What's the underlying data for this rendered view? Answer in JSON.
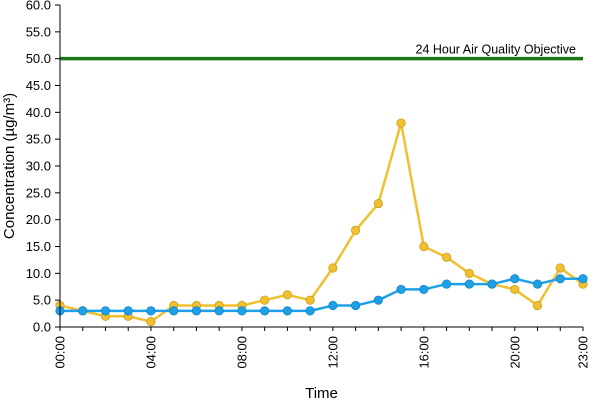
{
  "chart_data": {
    "type": "line",
    "xlabel": "Time",
    "ylabel": "Concentration (µg/m³)",
    "ylim": [
      0,
      60
    ],
    "yticks": [
      "0.0",
      "5.0",
      "10.0",
      "15.0",
      "20.0",
      "25.0",
      "30.0",
      "35.0",
      "40.0",
      "45.0",
      "50.0",
      "55.0",
      "60.0"
    ],
    "x": [
      "00:00",
      "01:00",
      "02:00",
      "03:00",
      "04:00",
      "05:00",
      "06:00",
      "07:00",
      "08:00",
      "09:00",
      "10:00",
      "11:00",
      "12:00",
      "13:00",
      "14:00",
      "15:00",
      "16:00",
      "17:00",
      "18:00",
      "19:00",
      "20:00",
      "21:00",
      "22:00",
      "23:00"
    ],
    "xtick_labels": [
      "00:00",
      "04:00",
      "08:00",
      "12:00",
      "16:00",
      "20:00",
      "23:00"
    ],
    "grid": false,
    "series": [
      {
        "color": "#f0c030",
        "values": [
          4,
          3,
          2,
          2,
          1,
          4,
          4,
          4,
          4,
          5,
          6,
          5,
          11,
          18,
          23,
          38,
          15,
          13,
          10,
          8,
          7,
          4,
          11,
          8
        ]
      },
      {
        "color": "#1ea0e8",
        "values": [
          3,
          3,
          3,
          3,
          3,
          3,
          3,
          3,
          3,
          3,
          3,
          3,
          4,
          4,
          5,
          7,
          7,
          8,
          8,
          8,
          9,
          8,
          9,
          9
        ]
      }
    ],
    "reference_line": {
      "value": 50,
      "label": "24 Hour Air Quality Objective",
      "color": "#1a7a1a"
    }
  }
}
